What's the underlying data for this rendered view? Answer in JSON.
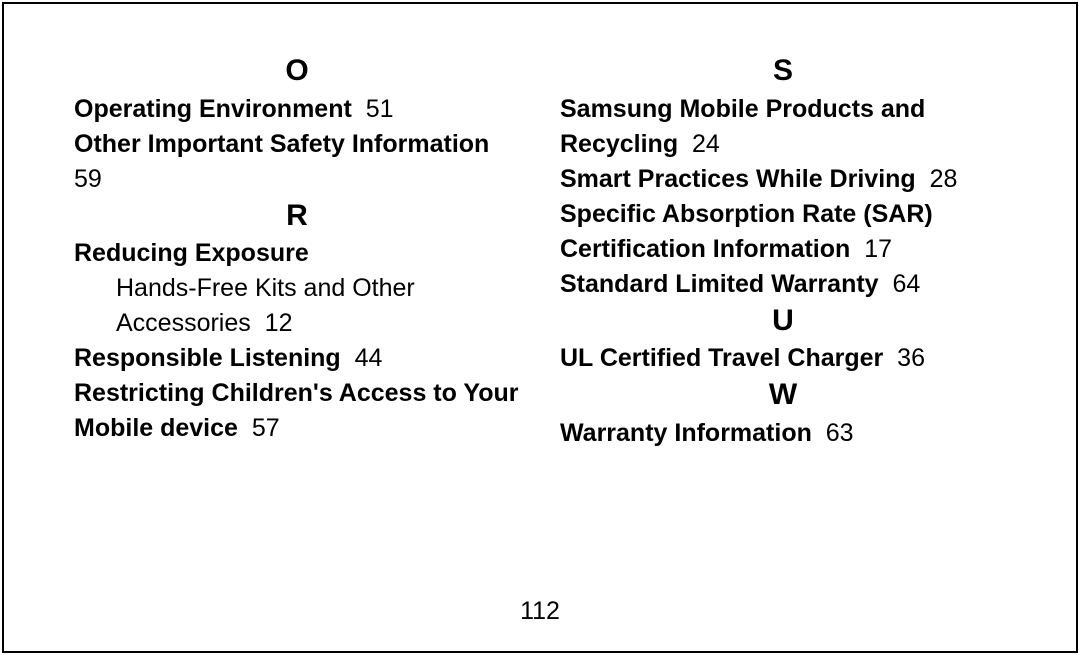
{
  "leftColumn": {
    "sections": [
      {
        "letter": "O",
        "items": [
          {
            "title": "Operating Environment",
            "page": "51"
          },
          {
            "title": "Other Important Safety Information",
            "page": "59",
            "break": true
          }
        ]
      },
      {
        "letter": "R",
        "items": [
          {
            "title": "Reducing Exposure",
            "page": ""
          },
          {
            "subentry": true,
            "text": "Hands-Free Kits and Other Accessories",
            "page": "12"
          },
          {
            "title": "Responsible Listening",
            "page": "44"
          },
          {
            "title": "Restricting Children's Access to Your Mobile device",
            "page": "57"
          }
        ]
      }
    ]
  },
  "rightColumn": {
    "sections": [
      {
        "letter": "S",
        "items": [
          {
            "title": "Samsung Mobile Products and Recycling",
            "page": "24"
          },
          {
            "title": "Smart Practices While Driving",
            "page": "28"
          },
          {
            "title": "Specific Absorption Rate (SAR) Certification Information",
            "page": "17"
          },
          {
            "title": "Standard Limited Warranty",
            "page": "64"
          }
        ]
      },
      {
        "letter": "U",
        "items": [
          {
            "title": "UL Certified Travel Charger",
            "page": "36"
          }
        ]
      },
      {
        "letter": "W",
        "items": [
          {
            "title": "Warranty Information",
            "page": "63"
          }
        ]
      }
    ]
  },
  "pageNumber": "112"
}
